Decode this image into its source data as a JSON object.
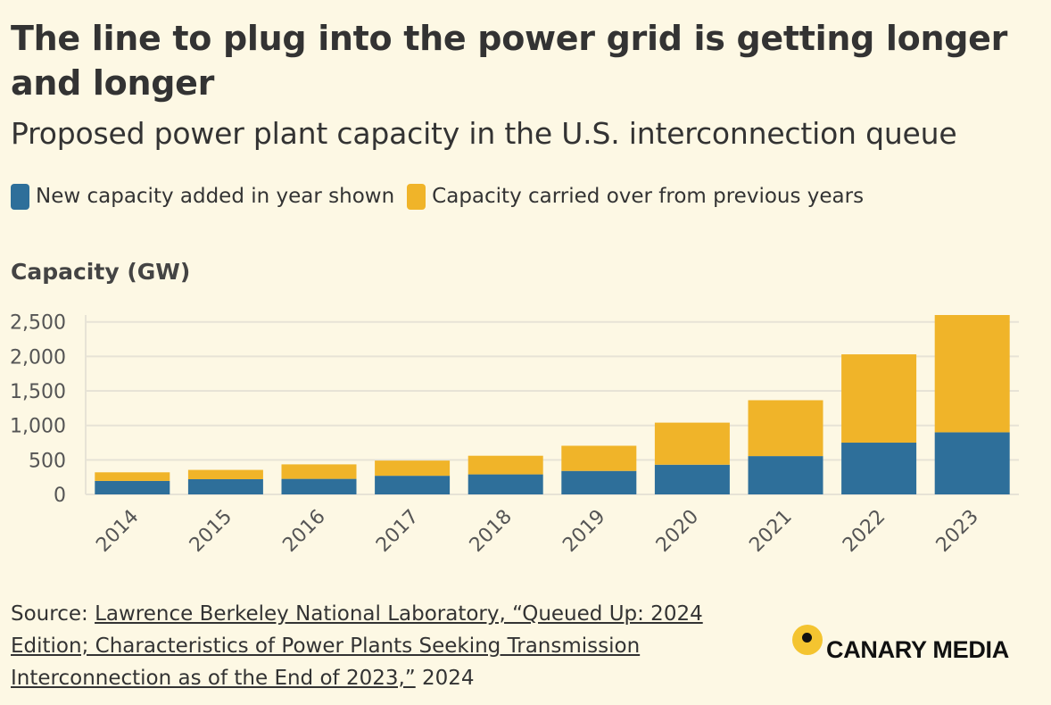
{
  "header": {
    "title": "The line to plug into the power grid is getting longer and longer",
    "subtitle": "Proposed power plant capacity in the U.S. interconnection queue"
  },
  "legend": {
    "new_label": "New capacity added in year shown",
    "carried_label": "Capacity carried over from previous years"
  },
  "colors": {
    "new": "#2e6f9a",
    "carried": "#f0b429",
    "background": "#fdf8e4",
    "grid": "#e7e3d6"
  },
  "source": {
    "prefix": "Source: ",
    "link_text": "Lawrence Berkeley National Laboratory, “Queued Up: 2024 Edition; Characteristics of Power Plants Seeking Transmission Interconnection as of the End of 2023,”",
    "suffix": " 2024"
  },
  "logo": {
    "text": "CANARY MEDIA"
  },
  "chart_data": {
    "type": "bar",
    "stacked": true,
    "ylabel": "Capacity (GW)",
    "xlabel": "",
    "ylim": [
      0,
      2600
    ],
    "yticks": [
      0,
      500,
      1000,
      1500,
      2000,
      2500
    ],
    "ytick_labels": [
      "0",
      "500",
      "1,000",
      "1,500",
      "2,000",
      "2,500"
    ],
    "categories": [
      "2014",
      "2015",
      "2016",
      "2017",
      "2018",
      "2019",
      "2020",
      "2021",
      "2022",
      "2023"
    ],
    "series": [
      {
        "name": "New capacity added in year shown",
        "values": [
          195,
          220,
          225,
          270,
          290,
          340,
          430,
          555,
          750,
          900
        ]
      },
      {
        "name": "Capacity carried over from previous years",
        "values": [
          125,
          135,
          210,
          220,
          270,
          365,
          610,
          810,
          1280,
          1700
        ]
      }
    ]
  }
}
